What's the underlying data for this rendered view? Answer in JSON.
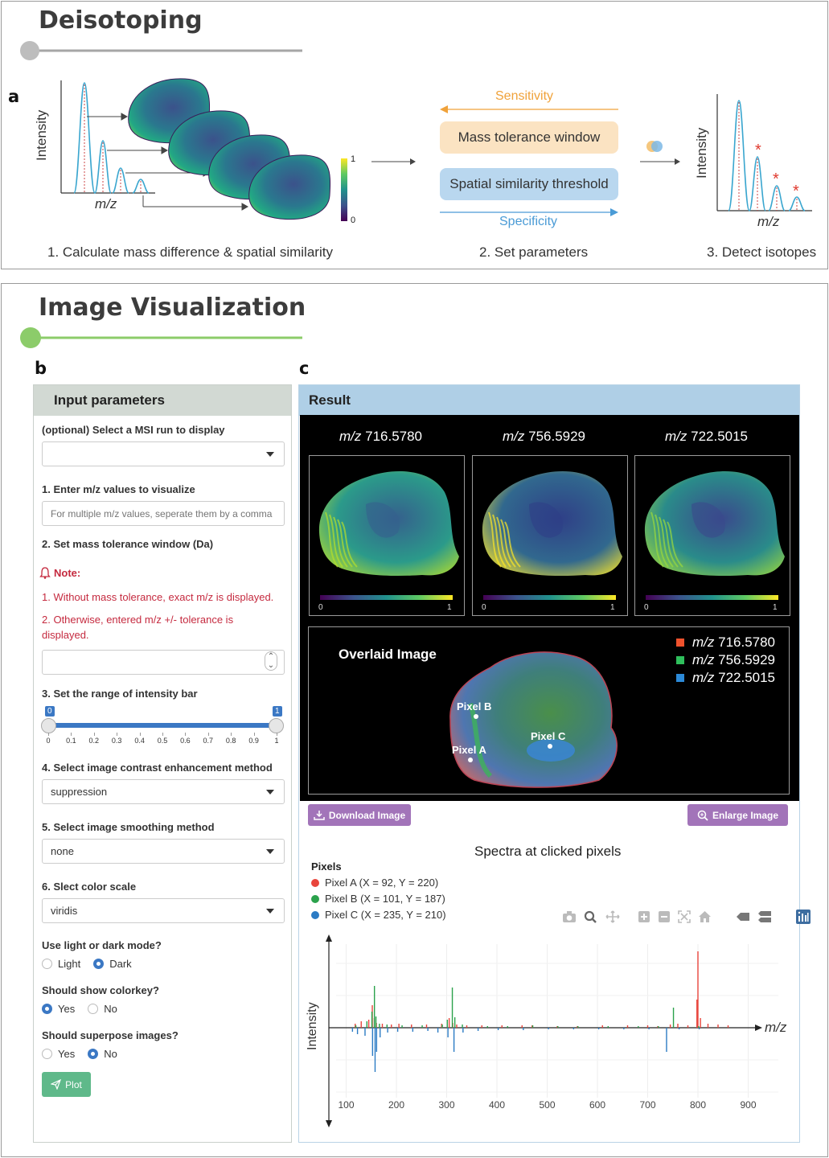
{
  "deisotoping": {
    "title": "Deisotoping",
    "panel_letter": "a",
    "intensity_label": "Intensity",
    "mz_label": "m/z",
    "colorbar_max": "1",
    "colorbar_min": "0",
    "sensitivity": "Sensitivity",
    "mass_tolerance": "Mass tolerance window",
    "spatial_similarity": "Spatial similarity threshold",
    "specificity": "Specificity",
    "step1": "1. Calculate mass difference & spatial similarity",
    "step2": "2. Set parameters",
    "step3": "3. Detect isotopes",
    "isotope_marker": "*",
    "colors": {
      "sensitivity": "#f0a23a",
      "specificity": "#4a9bd6",
      "mass_box": "#fbe3c2",
      "spatial_box": "#b9d7ef",
      "peak": "#3aa6cf",
      "asterisk": "#e03a2f"
    }
  },
  "visualization": {
    "title": "Image Visualization",
    "panel_b": "b",
    "panel_c": "c"
  },
  "input": {
    "header": "Input parameters",
    "msi_label": "(optional) Select a MSI run to display",
    "msi_value": "",
    "mz_label": "1. Enter m/z values to visualize",
    "mz_placeholder": "For multiple m/z values, seperate them by a comma",
    "tol_label": "2. Set mass tolerance window (Da)",
    "note_title": "Note:",
    "note1": "1. Without mass tolerance, exact m/z is displayed.",
    "note2": "2. Otherwise, entered m/z +/- tolerance is displayed.",
    "tol_value": "",
    "range_label": "3. Set the range of intensity bar",
    "range_min": "0",
    "range_max": "1",
    "range_ticks": [
      "0",
      "0.1",
      "0.2",
      "0.3",
      "0.4",
      "0.5",
      "0.6",
      "0.7",
      "0.8",
      "0.9",
      "1"
    ],
    "contrast_label": "4. Select image contrast enhancement method",
    "contrast_value": "suppression",
    "smooth_label": "5. Select image smoothing method",
    "smooth_value": "none",
    "color_label": "6. Slect color scale",
    "color_value": "viridis",
    "mode_label": "Use light or dark mode?",
    "mode_options": [
      "Light",
      "Dark"
    ],
    "mode_selected": "Dark",
    "colorkey_label": "Should show colorkey?",
    "colorkey_options": [
      "Yes",
      "No"
    ],
    "colorkey_selected": "Yes",
    "superpose_label": "Should superpose images?",
    "superpose_options": [
      "Yes",
      "No"
    ],
    "superpose_selected": "No",
    "plot_button": "Plot"
  },
  "result": {
    "header": "Result",
    "images": [
      {
        "mz_prefix": "m/z",
        "mz": "716.5780"
      },
      {
        "mz_prefix": "m/z",
        "mz": "756.5929"
      },
      {
        "mz_prefix": "m/z",
        "mz": "722.5015"
      }
    ],
    "cbar_min": "0",
    "cbar_max": "1",
    "overlay_title": "Overlaid Image",
    "overlay_legend": [
      {
        "prefix": "m/z",
        "mz": "716.5780",
        "color": "#f0522d"
      },
      {
        "prefix": "m/z",
        "mz": "756.5929",
        "color": "#2fbf5c"
      },
      {
        "prefix": "m/z",
        "mz": "722.5015",
        "color": "#2c8ad8"
      }
    ],
    "pixel_labels": [
      "Pixel B",
      "Pixel A",
      "Pixel C"
    ],
    "download_button": "Download Image",
    "enlarge_button": "Enlarge Image",
    "spectra_title": "Spectra at clicked pixels",
    "pixels_legend_title": "Pixels",
    "pixels_legend": [
      {
        "label": "Pixel A (X = 92, Y = 220)",
        "color": "#e8453c"
      },
      {
        "label": "Pixel B (X = 101, Y = 187)",
        "color": "#2ba24c"
      },
      {
        "label": "Pixel C (X = 235, Y = 210)",
        "color": "#2b7bc4"
      }
    ],
    "toolbar_icons": [
      "camera-icon",
      "zoom-icon",
      "pan-icon",
      "zoom-in-icon",
      "zoom-out-icon",
      "autoscale-icon",
      "home-icon",
      "hover-closest-icon",
      "hover-compare-icon",
      "plotly-logo-icon"
    ]
  },
  "chart_data": {
    "type": "bar",
    "title": "Spectra at clicked pixels",
    "xlabel": "m/z",
    "ylabel": "Intensity",
    "xlim": [
      80,
      960
    ],
    "xticks": [
      100,
      200,
      300,
      400,
      500,
      600,
      700,
      800,
      900
    ],
    "series": [
      {
        "name": "Pixel A (X = 92, Y = 220)",
        "color": "#e8453c",
        "x": [
          118,
          130,
          145,
          152,
          156,
          160,
          172,
          190,
          205,
          230,
          260,
          290,
          305,
          312,
          320,
          340,
          370,
          410,
          450,
          470,
          520,
          560,
          610,
          660,
          700,
          720,
          745,
          760,
          780,
          798,
          800,
          805,
          820,
          840,
          860
        ],
        "y": [
          0.05,
          0.08,
          0.1,
          0.28,
          0.12,
          0.06,
          0.05,
          0.04,
          0.05,
          0.04,
          0.04,
          0.05,
          0.12,
          0.06,
          0.04,
          0.03,
          0.03,
          0.03,
          0.03,
          0.03,
          0.02,
          0.02,
          0.03,
          0.03,
          0.03,
          0.02,
          0.04,
          0.05,
          0.03,
          0.35,
          0.95,
          0.12,
          0.05,
          0.04,
          0.03
        ]
      },
      {
        "name": "Pixel B (X = 101, Y = 187)",
        "color": "#2ba24c",
        "x": [
          118,
          140,
          150,
          155,
          158,
          165,
          180,
          210,
          250,
          290,
          300,
          310,
          315,
          330,
          380,
          420,
          470,
          520,
          560,
          620,
          680,
          720,
          750,
          800
        ],
        "y": [
          0.03,
          0.08,
          0.2,
          0.52,
          0.14,
          0.05,
          0.04,
          0.03,
          0.03,
          0.04,
          0.1,
          0.5,
          0.13,
          0.04,
          0.02,
          0.02,
          0.03,
          0.02,
          0.02,
          0.02,
          0.02,
          0.02,
          0.25,
          0.02
        ]
      },
      {
        "name": "Pixel C (X = 235, Y = 210)",
        "color": "#2b7bc4",
        "x": [
          110,
          120,
          135,
          150,
          155,
          158,
          165,
          180,
          200,
          230,
          260,
          280,
          300,
          312,
          330,
          360,
          400,
          450,
          500,
          550,
          600,
          650,
          700,
          735,
          760,
          800
        ],
        "y": [
          -0.05,
          -0.08,
          -0.1,
          -0.35,
          -0.55,
          -0.3,
          -0.12,
          -0.06,
          -0.05,
          -0.05,
          -0.04,
          -0.06,
          -0.12,
          -0.3,
          -0.06,
          -0.04,
          -0.03,
          -0.03,
          -0.02,
          -0.02,
          -0.02,
          -0.02,
          -0.02,
          -0.3,
          -0.02,
          -0.02
        ]
      }
    ]
  }
}
